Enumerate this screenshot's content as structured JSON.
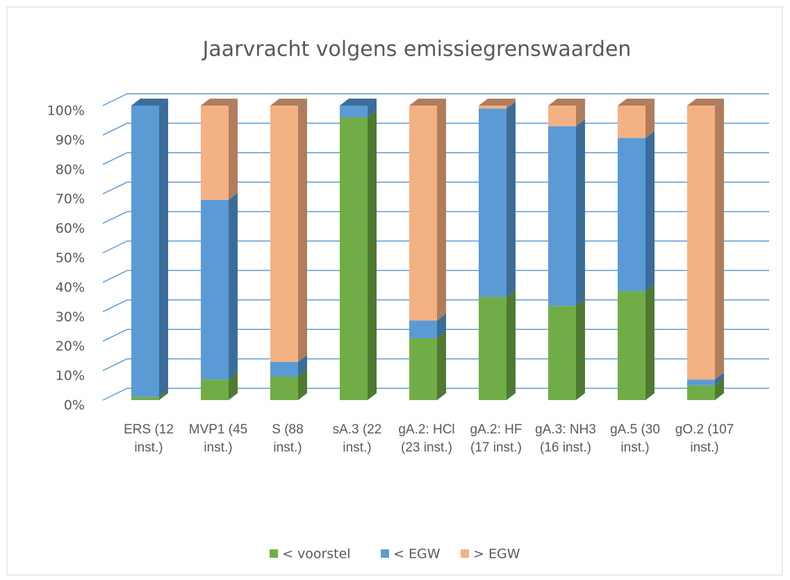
{
  "chart_data": {
    "type": "bar3d_stacked",
    "title": "Jaarvracht volgens emissiegrenswaarden",
    "categories": [
      "ERS (12 inst.)",
      "MVP1 (45 inst.)",
      "S (88 inst.)",
      "sA.3 (22 inst.)",
      "gA.2: HCl (23 inst.)",
      "gA.2: HF (17 inst.)",
      "gA.3: NH3 (16 inst.)",
      "gA.5 (30 inst.)",
      "gO.2 (107 inst.)"
    ],
    "series": [
      {
        "name": "< voorstel",
        "color": "#70ad47",
        "side_color": "#4e7a31",
        "values": [
          1,
          7,
          8,
          96,
          21,
          35,
          32,
          37,
          5
        ]
      },
      {
        "name": "< EGW",
        "color": "#5b9bd5",
        "side_color": "#3c6d99",
        "values": [
          99,
          61,
          5,
          4,
          6,
          64,
          61,
          52,
          2
        ]
      },
      {
        "name": "> EGW",
        "color": "#f4b183",
        "side_color": "#b07d5c",
        "values": [
          0,
          32,
          87,
          0,
          73,
          1,
          7,
          11,
          93
        ]
      }
    ],
    "ylim": [
      0,
      100
    ],
    "yticks": [
      {
        "value": 0,
        "label": "0%"
      },
      {
        "value": 10,
        "label": "10%"
      },
      {
        "value": 20,
        "label": "20%"
      },
      {
        "value": 30,
        "label": "30%"
      },
      {
        "value": 40,
        "label": "40%"
      },
      {
        "value": 50,
        "label": "50%"
      },
      {
        "value": 60,
        "label": "60%"
      },
      {
        "value": 70,
        "label": "70%"
      },
      {
        "value": 80,
        "label": "80%"
      },
      {
        "value": 90,
        "label": "90%"
      },
      {
        "value": 100,
        "label": "100%"
      }
    ],
    "grid": true,
    "grid_color": "#5b9bd5",
    "legend": "bottom"
  }
}
